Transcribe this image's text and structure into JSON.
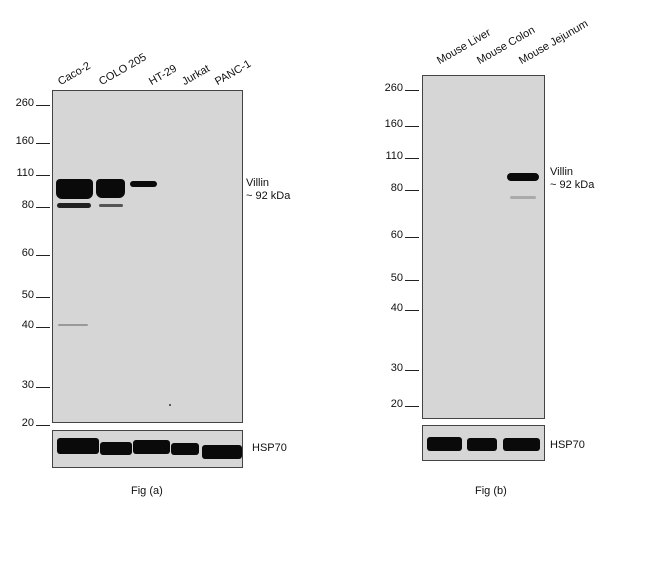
{
  "fig_a": {
    "lanes": [
      "Caco-2",
      "COLO 205",
      "HT-29",
      "Jurkat",
      "PANC-1"
    ],
    "markers": [
      "260",
      "160",
      "110",
      "80",
      "60",
      "50",
      "40",
      "30",
      "20"
    ],
    "target_label": "Villin",
    "target_mass": "~ 92 kDa",
    "loading_control": "HSP70",
    "caption": "Fig (a)"
  },
  "fig_b": {
    "lanes": [
      "Mouse Liver",
      "Mouse Colon",
      "Mouse Jejunum"
    ],
    "markers": [
      "260",
      "160",
      "110",
      "80",
      "60",
      "50",
      "40",
      "30",
      "20"
    ],
    "target_label": "Villin",
    "target_mass": "~ 92 kDa",
    "loading_control": "HSP70",
    "caption": "Fig (b)"
  }
}
